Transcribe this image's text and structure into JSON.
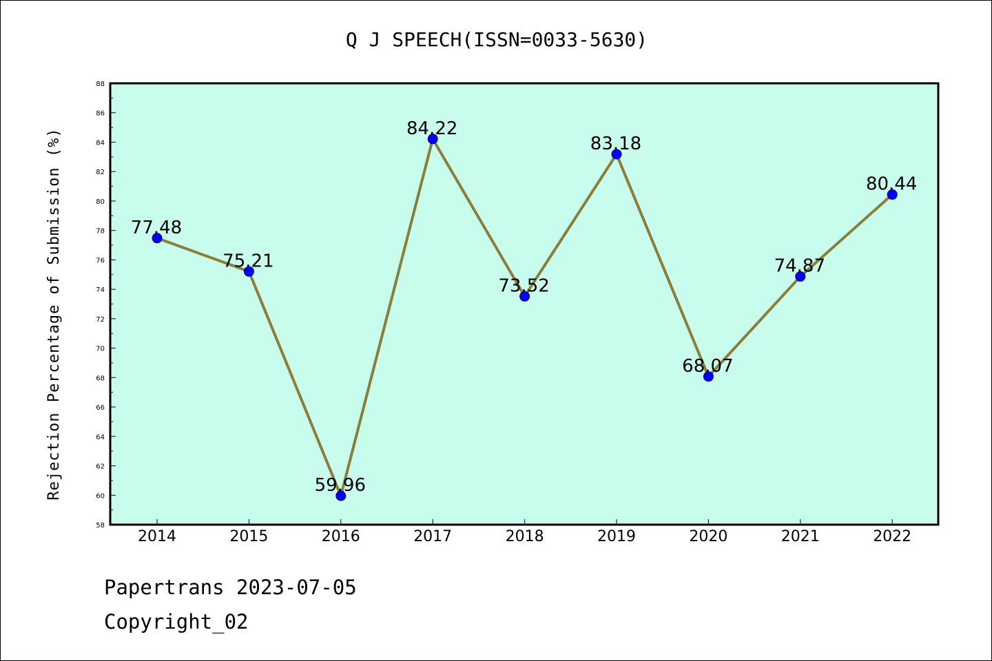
{
  "chart_data": {
    "type": "line",
    "title": "Q J SPEECH(ISSN=0033-5630)",
    "xlabel": "",
    "ylabel": "Rejection Percentage of Submission (%)",
    "categories": [
      "2014",
      "2015",
      "2016",
      "2017",
      "2018",
      "2019",
      "2020",
      "2021",
      "2022"
    ],
    "series": [
      {
        "values": [
          77.48,
          75.21,
          59.96,
          84.22,
          73.52,
          83.18,
          68.07,
          74.87,
          80.44
        ],
        "labels": [
          "77.48",
          "75.21",
          "59.96",
          "84.22",
          "73.52",
          "83.18",
          "68.07",
          "74.87",
          "80.44"
        ],
        "line_color": "#8b7d3a",
        "marker_color": "#0000ff"
      }
    ],
    "ylim": [
      58,
      88
    ],
    "yticks": [
      58,
      60,
      62,
      64,
      66,
      68,
      70,
      72,
      74,
      76,
      78,
      80,
      82,
      84,
      86,
      88
    ],
    "plot_background": "#c8fcec",
    "grid": false,
    "legend": "none"
  },
  "footer": {
    "line1": "Papertrans 2023-07-05",
    "line2": "Copyright_02"
  }
}
